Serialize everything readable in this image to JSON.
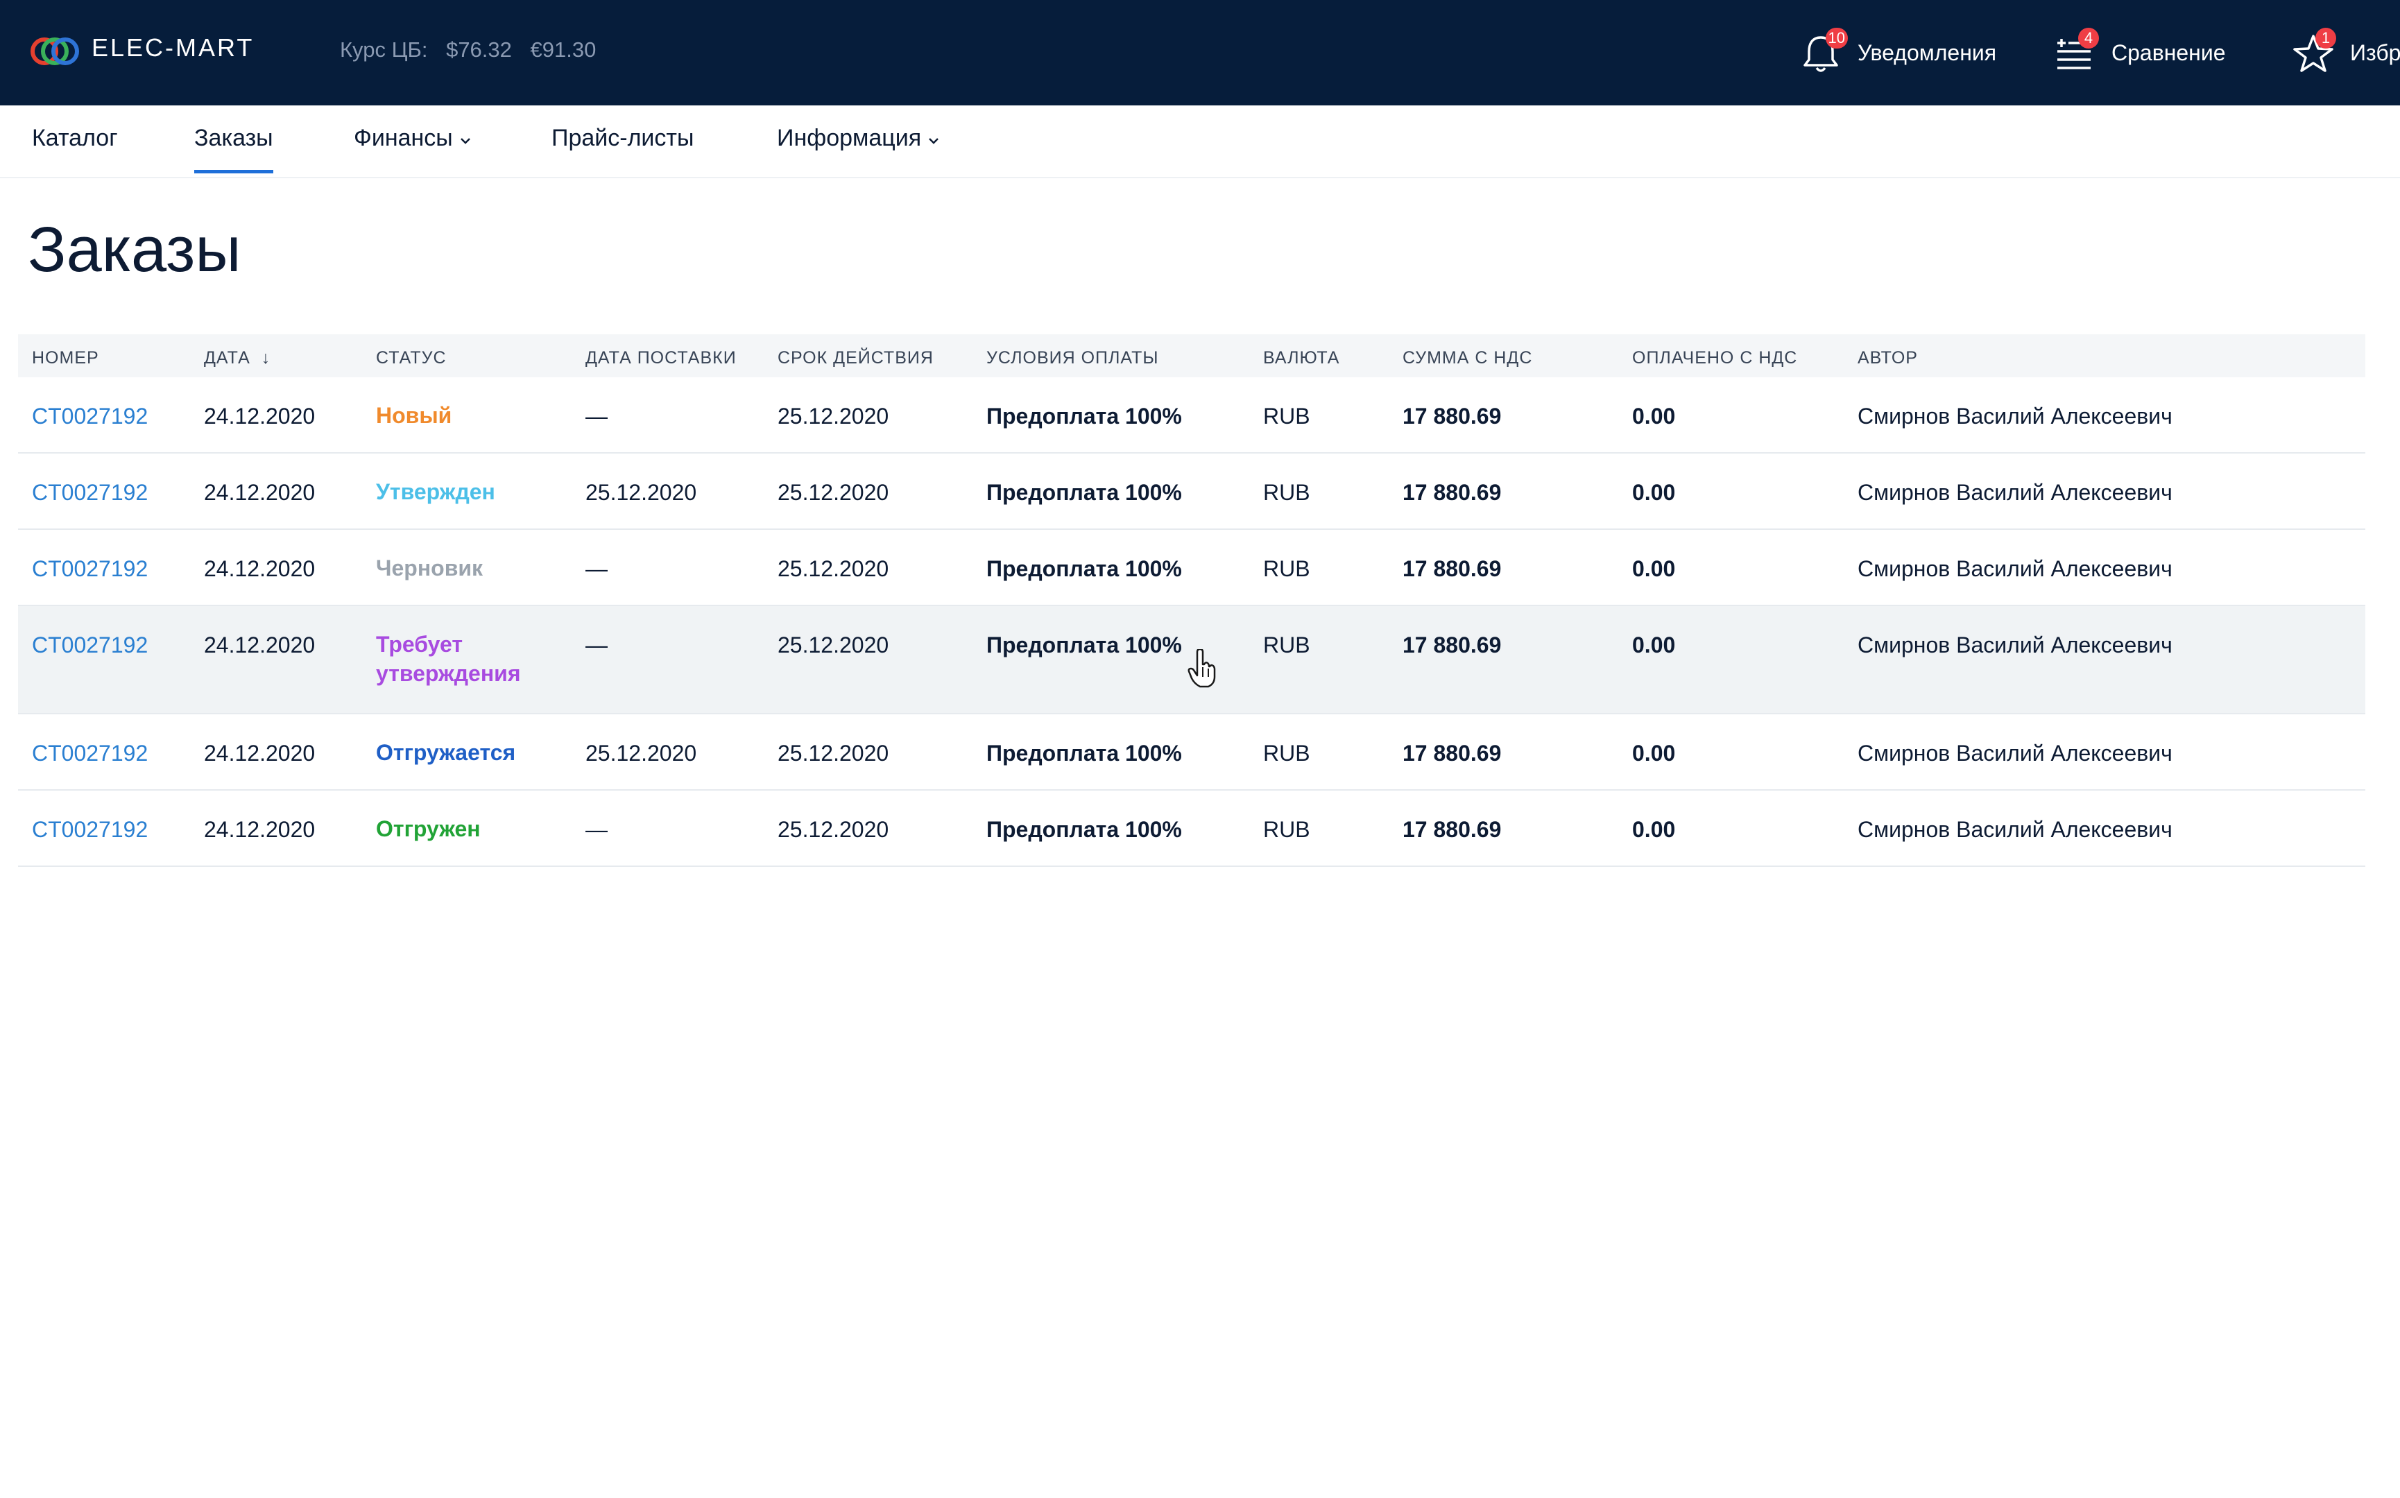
{
  "header": {
    "brand": "ELEC-MART",
    "rate_label": "Курс ЦБ:",
    "usd": "$76.32",
    "eur": "€91.30",
    "actions": [
      {
        "label": "Уведомления",
        "badge": "10",
        "icon": "bell-icon"
      },
      {
        "label": "Сравнение",
        "badge": "4",
        "icon": "compare-list-icon"
      },
      {
        "label": "Избр",
        "badge": "1",
        "icon": "star-icon"
      }
    ]
  },
  "nav": {
    "items": [
      {
        "label": "Каталог"
      },
      {
        "label": "Заказы",
        "active": true
      },
      {
        "label": "Финансы",
        "dropdown": true
      },
      {
        "label": "Прайс-листы"
      },
      {
        "label": "Информация",
        "dropdown": true
      }
    ]
  },
  "page": {
    "title": "Заказы"
  },
  "table": {
    "columns": [
      "НОМЕР",
      "ДАТА",
      "СТАТУС",
      "ДАТА ПОСТАВКИ",
      "СРОК ДЕЙСТВИЯ",
      "УСЛОВИЯ ОПЛАТЫ",
      "ВАЛЮТА",
      "СУММА С НДС",
      "ОПЛАЧЕНО С НДС",
      "АВТОР"
    ],
    "sort_indicator": "↓",
    "rows": [
      {
        "number": "CT0027192",
        "date": "24.12.2020",
        "status": "Новый",
        "status_color": "#f08a2c",
        "delivery": "—",
        "valid": "25.12.2020",
        "payment": "Предоплата 100%",
        "currency": "RUB",
        "sum": "17 880.69",
        "paid": "0.00",
        "author": "Смирнов Василий Алексеевич"
      },
      {
        "number": "CT0027192",
        "date": "24.12.2020",
        "status": "Утвержден",
        "status_color": "#4cbfe8",
        "delivery": "25.12.2020",
        "valid": "25.12.2020",
        "payment": "Предоплата 100%",
        "currency": "RUB",
        "sum": "17 880.69",
        "paid": "0.00",
        "author": "Смирнов Василий Алексеевич"
      },
      {
        "number": "CT0027192",
        "date": "24.12.2020",
        "status": "Черновик",
        "status_color": "#9aa3ad",
        "delivery": "—",
        "valid": "25.12.2020",
        "payment": "Предоплата 100%",
        "currency": "RUB",
        "sum": "17 880.69",
        "paid": "0.00",
        "author": "Смирнов Василий Алексеевич"
      },
      {
        "number": "CT0027192",
        "date": "24.12.2020",
        "status": "Требует утверждения",
        "status_color": "#a84be0",
        "delivery": "—",
        "valid": "25.12.2020",
        "payment": "Предоплата 100%",
        "currency": "RUB",
        "sum": "17 880.69",
        "paid": "0.00",
        "author": "Смирнов Василий Алексеевич"
      },
      {
        "number": "CT0027192",
        "date": "24.12.2020",
        "status": "Отгружается",
        "status_color": "#1f5fc6",
        "delivery": "25.12.2020",
        "valid": "25.12.2020",
        "payment": "Предоплата 100%",
        "currency": "RUB",
        "sum": "17 880.69",
        "paid": "0.00",
        "author": "Смирнов Василий Алексеевич"
      },
      {
        "number": "CT0027192",
        "date": "24.12.2020",
        "status": "Отгружен",
        "status_color": "#21a336",
        "delivery": "—",
        "valid": "25.12.2020",
        "payment": "Предоплата 100%",
        "currency": "RUB",
        "sum": "17 880.69",
        "paid": "0.00",
        "author": "Смирнов Василий Алексеевич"
      }
    ]
  },
  "colors": {
    "header_bg": "#061d3b",
    "accent": "#1e6fd9",
    "link": "#2a7fd1",
    "badge": "#ef3e45"
  }
}
